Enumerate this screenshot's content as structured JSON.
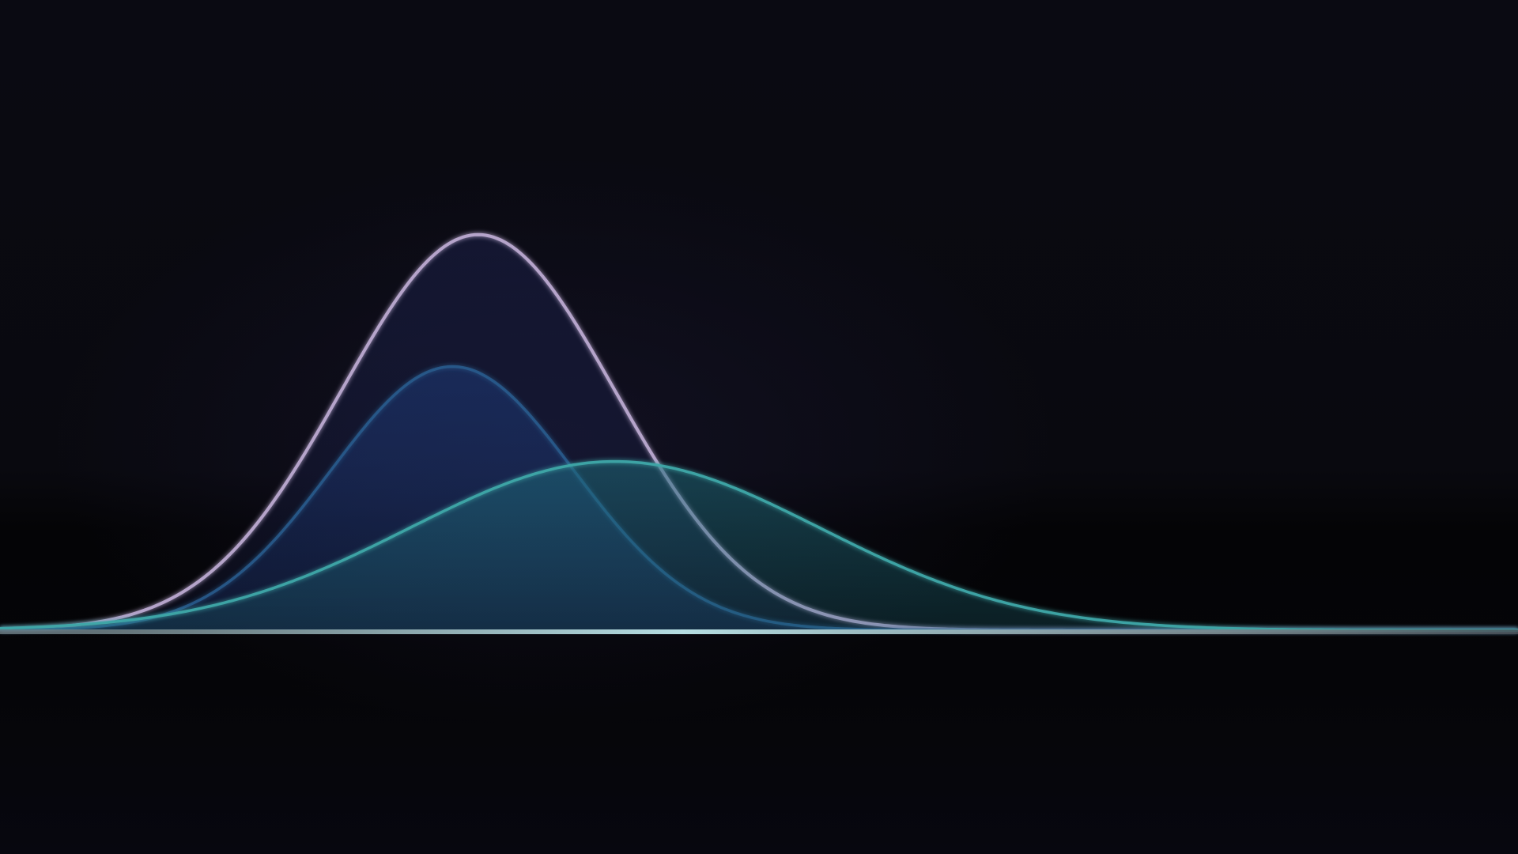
{
  "chart_data": {
    "type": "area",
    "title": "",
    "xlabel": "",
    "ylabel": "",
    "grid": false,
    "legend": "none",
    "xlim": [
      0,
      100
    ],
    "ylim": [
      0,
      1
    ],
    "series": [
      {
        "curve": "gaussian",
        "mean": 31.5,
        "sd": 9.0,
        "peak": 0.75,
        "line_color": "#b9a8cf",
        "fill_color": "#1a2048"
      },
      {
        "curve": "gaussian",
        "mean": 29.8,
        "sd": 8.0,
        "peak": 0.5,
        "line_color": "#2a5d8e",
        "fill_color": "#1d3a78"
      },
      {
        "curve": "gaussian",
        "mean": 40.5,
        "sd": 13.5,
        "peak": 0.32,
        "line_color": "#3ea7a8",
        "fill_color": "#1e6a78"
      }
    ],
    "baseline_color": "#9fc7cc"
  }
}
